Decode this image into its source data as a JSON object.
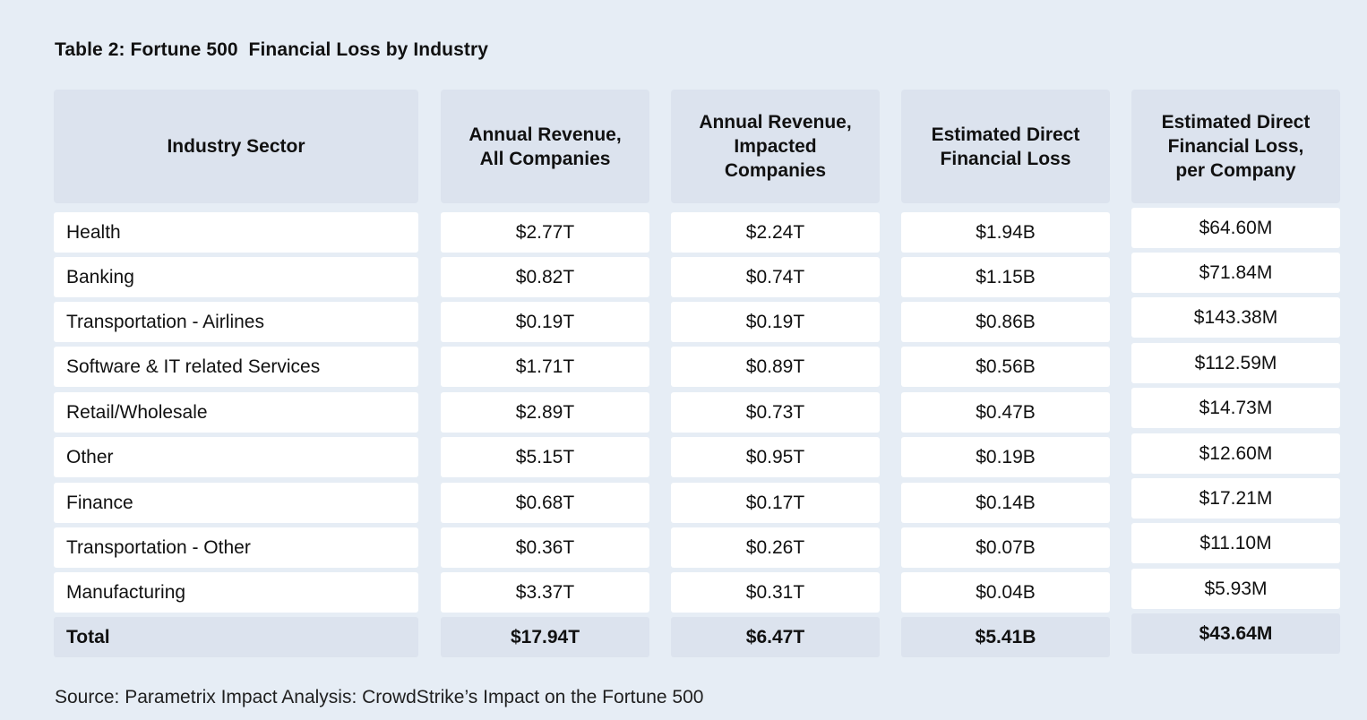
{
  "title": "Table 2: Fortune 500  Financial Loss by Industry",
  "headers": [
    "Industry Sector",
    "Annual Revenue,\nAll Companies",
    "Annual Revenue,\nImpacted\nCompanies",
    "Estimated Direct\nFinancial Loss",
    "Estimated Direct\nFinancial Loss,\nper Company"
  ],
  "rows": [
    [
      "Health",
      "$2.77T",
      "$2.24T",
      "$1.94B",
      "$64.60M"
    ],
    [
      "Banking",
      "$0.82T",
      "$0.74T",
      "$1.15B",
      "$71.84M"
    ],
    [
      "Transportation - Airlines",
      "$0.19T",
      "$0.19T",
      "$0.86B",
      "$143.38M"
    ],
    [
      "Software & IT related Services",
      "$1.71T",
      "$0.89T",
      "$0.56B",
      "$112.59M"
    ],
    [
      "Retail/Wholesale",
      "$2.89T",
      "$0.73T",
      "$0.47B",
      "$14.73M"
    ],
    [
      "Other",
      "$5.15T",
      "$0.95T",
      "$0.19B",
      "$12.60M"
    ],
    [
      "Finance",
      "$0.68T",
      "$0.17T",
      "$0.14B",
      "$17.21M"
    ],
    [
      "Transportation - Other",
      "$0.36T",
      "$0.26T",
      "$0.07B",
      "$11.10M"
    ],
    [
      "Manufacturing",
      "$3.37T",
      "$0.31T",
      "$0.04B",
      "$5.93M"
    ]
  ],
  "total": [
    "Total",
    "$17.94T",
    "$6.47T",
    "$5.41B",
    "$43.64M"
  ],
  "source": "Source: Parametrix Impact Analysis: CrowdStrike’s Impact on the Fortune 500",
  "colors": {
    "background": "#e6edf5",
    "header_fill": "#dce3ee",
    "cell_fill": "#ffffff"
  }
}
